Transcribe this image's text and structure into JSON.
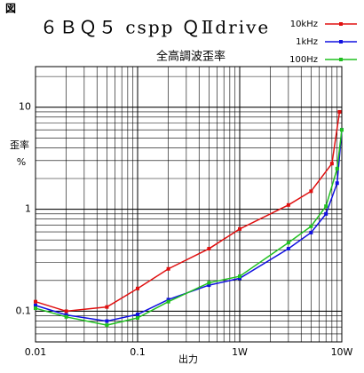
{
  "chart_data": {
    "type": "line",
    "corner_label": "図",
    "title": "６ＢＱ５ cspp ＱⅡdrive",
    "subtitle": "全高調波歪率",
    "xlabel": "出力",
    "ylabel": [
      "歪率",
      "%"
    ],
    "log_x": true,
    "log_y": true,
    "grid": true,
    "minor_grid": true,
    "legend": "upper right",
    "markers": true,
    "xlim": [
      0.01,
      10
    ],
    "xticks": [
      0.01,
      0.1,
      {
        "value": 1,
        "label": "1W"
      },
      {
        "value": 10,
        "label": "10W"
      }
    ],
    "ylim": [
      0.05,
      25
    ],
    "yticks": [
      0.1,
      1,
      10
    ],
    "series": [
      {
        "name": "10kHz",
        "color": "#e01010",
        "x": [
          0.01,
          0.02,
          0.05,
          0.1,
          0.2,
          0.5,
          1,
          3,
          5,
          8,
          9.5
        ],
        "values": [
          0.124,
          0.1,
          0.11,
          0.167,
          0.26,
          0.41,
          0.64,
          1.1,
          1.5,
          2.8,
          9
        ]
      },
      {
        "name": "1kHz",
        "color": "#1010e0",
        "x": [
          0.01,
          0.02,
          0.05,
          0.1,
          0.2,
          0.5,
          1,
          3,
          5,
          7,
          9,
          10
        ],
        "values": [
          0.114,
          0.092,
          0.08,
          0.093,
          0.13,
          0.18,
          0.21,
          0.41,
          0.59,
          0.9,
          1.8,
          6
        ]
      },
      {
        "name": "100Hz",
        "color": "#20c020",
        "x": [
          0.01,
          0.02,
          0.05,
          0.1,
          0.2,
          0.5,
          1,
          3,
          5,
          7,
          9,
          10
        ],
        "values": [
          0.107,
          0.088,
          0.073,
          0.086,
          0.124,
          0.19,
          0.22,
          0.47,
          0.68,
          1.07,
          2.5,
          6
        ]
      }
    ]
  }
}
